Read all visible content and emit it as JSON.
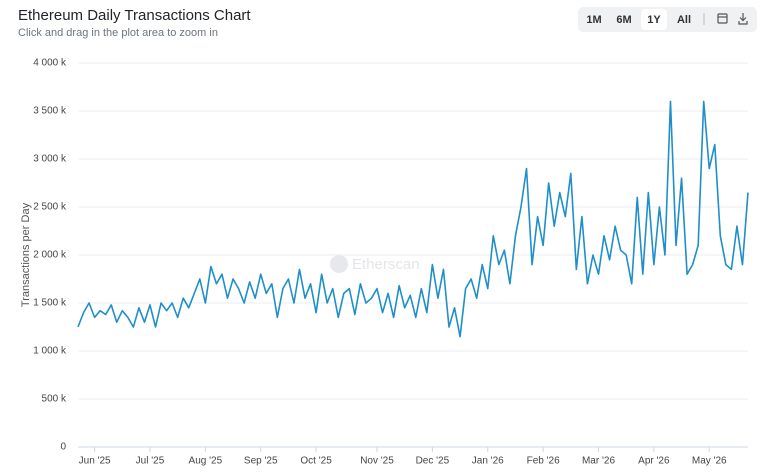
{
  "toolbar": {
    "ranges": [
      "1M",
      "6M",
      "1Y",
      "All"
    ],
    "selected": "1Y"
  },
  "chart_data": {
    "type": "line",
    "title": "Ethereum Daily Transactions Chart",
    "subtitle": "Click and drag in the plot area to zoom in",
    "watermark": "Etherscan",
    "y_label": "Transactions per Day",
    "color": "#1f8fc9",
    "grid": true,
    "ylim": [
      0,
      4000
    ],
    "yticks": [
      0,
      {
        "value": 500,
        "label": "500 k"
      },
      {
        "value": 1000,
        "label": "1 000 k"
      },
      {
        "value": 1500,
        "label": "1 500 k"
      },
      {
        "value": 2000,
        "label": "2 000 k"
      },
      {
        "value": 2500,
        "label": "2 500 k"
      },
      {
        "value": 3000,
        "label": "3 000 k"
      },
      {
        "value": 3500,
        "label": "3 500 k"
      },
      {
        "value": 4000,
        "label": "4 000 k"
      }
    ],
    "categories": [
      null,
      null,
      null,
      "Jun '25",
      null,
      null,
      null,
      null,
      null,
      null,
      null,
      null,
      null,
      "Jul '25",
      null,
      null,
      null,
      null,
      null,
      null,
      null,
      null,
      null,
      "Aug '25",
      null,
      null,
      null,
      null,
      null,
      null,
      null,
      null,
      null,
      "Sep '25",
      null,
      null,
      null,
      null,
      null,
      null,
      null,
      null,
      null,
      "Oct '25",
      null,
      null,
      null,
      null,
      null,
      null,
      null,
      null,
      null,
      null,
      "Nov '25",
      null,
      null,
      null,
      null,
      null,
      null,
      null,
      null,
      null,
      "Dec '25",
      null,
      null,
      null,
      null,
      null,
      null,
      null,
      null,
      null,
      "Jan '26",
      null,
      null,
      null,
      null,
      null,
      null,
      null,
      null,
      null,
      "Feb '26",
      null,
      null,
      null,
      null,
      null,
      null,
      null,
      null,
      null,
      "Mar '26",
      null,
      null,
      null,
      null,
      null,
      null,
      null,
      null,
      null,
      "Apr '26",
      null,
      null,
      null,
      null,
      null,
      null,
      null,
      null,
      null,
      "May '26",
      null,
      null,
      null,
      null,
      null,
      null,
      null
    ],
    "values": [
      1250,
      1400,
      1500,
      1350,
      1420,
      1380,
      1480,
      1300,
      1420,
      1350,
      1250,
      1450,
      1300,
      1480,
      1250,
      1500,
      1420,
      1500,
      1350,
      1550,
      1450,
      1600,
      1750,
      1500,
      1880,
      1700,
      1800,
      1550,
      1750,
      1650,
      1500,
      1720,
      1550,
      1800,
      1600,
      1700,
      1350,
      1650,
      1750,
      1500,
      1850,
      1550,
      1700,
      1400,
      1800,
      1500,
      1650,
      1350,
      1600,
      1650,
      1380,
      1700,
      1500,
      1550,
      1650,
      1400,
      1600,
      1350,
      1680,
      1450,
      1580,
      1350,
      1650,
      1400,
      1900,
      1550,
      1850,
      1250,
      1450,
      1150,
      1650,
      1750,
      1550,
      1900,
      1650,
      2200,
      1900,
      2050,
      1700,
      2200,
      2500,
      2900,
      1900,
      2400,
      2100,
      2750,
      2300,
      2650,
      2400,
      2850,
      1850,
      2400,
      1700,
      2000,
      1800,
      2200,
      1950,
      2300,
      2050,
      2000,
      1700,
      2600,
      1800,
      2650,
      1900,
      2500,
      2000,
      3600,
      2100,
      2800,
      1800,
      1900,
      2100,
      3600,
      2900,
      3150,
      2200,
      1900,
      1850,
      2300,
      1900,
      2650
    ]
  }
}
